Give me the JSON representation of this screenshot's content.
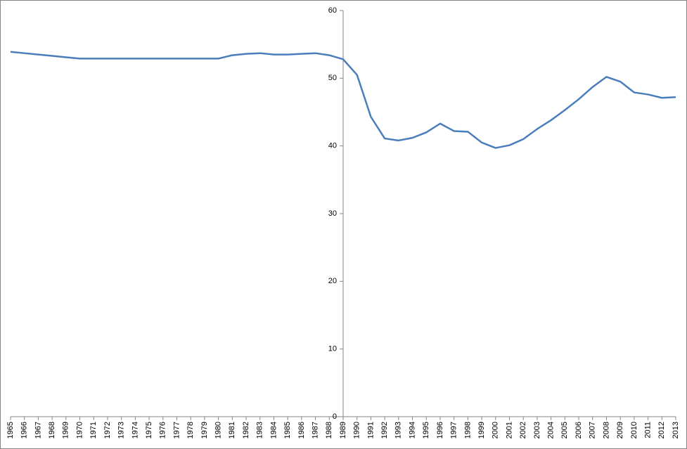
{
  "chart_data": {
    "type": "line",
    "categories": [
      "1965",
      "1966",
      "1967",
      "1968",
      "1969",
      "1970",
      "1971",
      "1972",
      "1973",
      "1974",
      "1975",
      "1976",
      "1977",
      "1978",
      "1979",
      "1980",
      "1981",
      "1982",
      "1983",
      "1984",
      "1985",
      "1986",
      "1987",
      "1988",
      "1989",
      "1990",
      "1991",
      "1992",
      "1993",
      "1994",
      "1995",
      "1996",
      "1997",
      "1998",
      "1999",
      "2000",
      "2001",
      "2002",
      "2003",
      "2004",
      "2005",
      "2006",
      "2007",
      "2008",
      "2009",
      "2010",
      "2011",
      "2012",
      "2013"
    ],
    "series": [
      {
        "color": "#4a7ebb",
        "values": [
          53.9,
          53.7,
          53.5,
          53.3,
          53.1,
          52.9,
          52.9,
          52.9,
          52.9,
          52.9,
          52.9,
          52.9,
          52.9,
          52.9,
          52.9,
          52.9,
          53.4,
          53.6,
          53.7,
          53.5,
          53.5,
          53.6,
          53.7,
          53.4,
          52.8,
          50.5,
          44.3,
          41.1,
          40.8,
          41.2,
          42.0,
          43.3,
          42.2,
          42.1,
          40.5,
          39.7,
          40.1,
          41.0,
          42.5,
          43.8,
          45.3,
          46.9,
          48.7,
          50.2,
          49.5,
          47.9,
          47.6,
          47.1,
          47.2
        ]
      }
    ],
    "ylim": [
      0,
      60
    ],
    "yticks": [
      0,
      10,
      20,
      30,
      40,
      50,
      60
    ],
    "y_axis_at_category": 24,
    "grid": false
  }
}
